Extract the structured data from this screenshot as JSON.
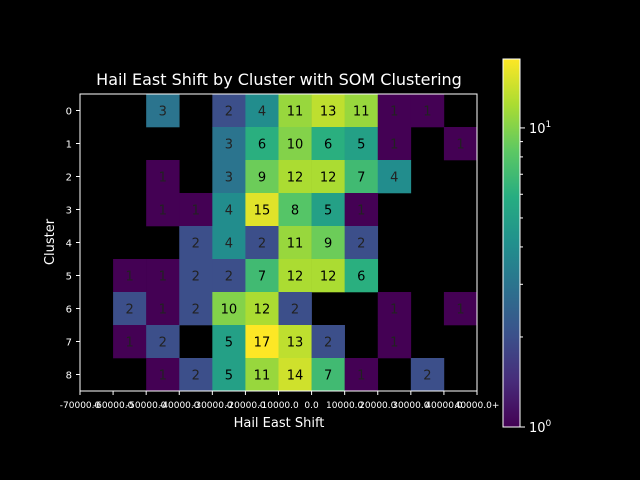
{
  "chart_data": {
    "type": "heatmap",
    "title": "Hail East Shift by Cluster with SOM Clustering",
    "xlabel": "Hail East Shift",
    "ylabel": "Cluster",
    "x_tick_labels": [
      "-70000.0",
      "-60000.0",
      "-50000.0",
      "-40000.0",
      "-30000.0",
      "-20000.0",
      "-10000.0",
      "0.0",
      "10000.0",
      "20000.0",
      "30000.0",
      "40000.0",
      "40000.0+"
    ],
    "y_tick_labels": [
      "0",
      "1",
      "2",
      "3",
      "4",
      "5",
      "6",
      "7",
      "8"
    ],
    "colorbar": {
      "scale": "log",
      "min": 1,
      "max": 17,
      "tick_major": "10^1",
      "tick_min": "10^0"
    },
    "matrix": [
      [
        null,
        null,
        3,
        null,
        2,
        4,
        11,
        13,
        11,
        1,
        1,
        null
      ],
      [
        null,
        null,
        null,
        null,
        3,
        6,
        10,
        6,
        5,
        1,
        null,
        1
      ],
      [
        null,
        null,
        1,
        null,
        3,
        9,
        12,
        12,
        7,
        4,
        null,
        null
      ],
      [
        null,
        null,
        1,
        1,
        4,
        15,
        8,
        5,
        1,
        null,
        null,
        null
      ],
      [
        null,
        null,
        null,
        2,
        4,
        2,
        11,
        9,
        2,
        null,
        null,
        null
      ],
      [
        null,
        1,
        1,
        2,
        2,
        7,
        12,
        12,
        6,
        null,
        null,
        null
      ],
      [
        null,
        2,
        1,
        2,
        10,
        12,
        2,
        null,
        null,
        1,
        null,
        1
      ],
      [
        null,
        1,
        2,
        null,
        5,
        17,
        13,
        2,
        null,
        1,
        null,
        null
      ],
      [
        null,
        null,
        1,
        2,
        5,
        11,
        14,
        7,
        1,
        null,
        2,
        null
      ]
    ]
  }
}
